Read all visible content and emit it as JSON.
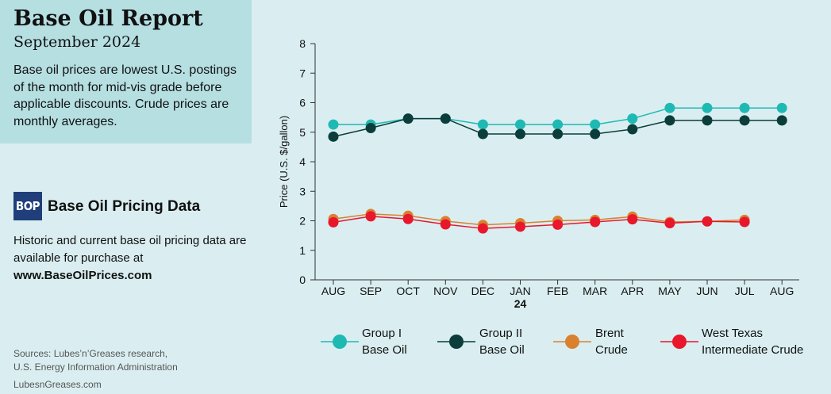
{
  "header": {
    "title": "Base Oil Report",
    "subtitle": "September 2024",
    "description": "Base oil prices are lowest U.S. postings of the month for mid-vis grade before applicable discounts. Crude prices are monthly averages."
  },
  "promo": {
    "logo_text": "BOP",
    "heading": "Base Oil Pricing Data",
    "text": "Historic and current base oil pricing data are available for purchase at",
    "url": "www.BaseOilPrices.com"
  },
  "footer": {
    "sources_line1": "Sources: Lubes’n’Greases research,",
    "sources_line2": "U.S. Energy Information Administration",
    "site": "LubesnGreases.com"
  },
  "legend": [
    {
      "line1": "Group I",
      "line2": "Base Oil"
    },
    {
      "line1": "Group II",
      "line2": "Base Oil"
    },
    {
      "line1": "Brent",
      "line2": "Crude"
    },
    {
      "line1": "West Texas",
      "line2": "Intermediate Crude"
    }
  ],
  "chart_data": {
    "type": "line",
    "categories": [
      "AUG",
      "SEP",
      "OCT",
      "NOV",
      "DEC",
      "JAN",
      "FEB",
      "MAR",
      "APR",
      "MAY",
      "JUN",
      "JUL",
      "AUG"
    ],
    "year_label": "24",
    "ylabel": "Price (U.S. $/gallon)",
    "ylim": [
      0,
      8
    ],
    "yticks": [
      0,
      1,
      2,
      3,
      4,
      5,
      6,
      7,
      8
    ],
    "grid": false,
    "legend_position": "bottom",
    "series": [
      {
        "name": "Group I Base Oil",
        "color": "#1fb9b4",
        "values": [
          5.26,
          5.26,
          5.46,
          5.46,
          5.26,
          5.26,
          5.26,
          5.26,
          5.46,
          5.82,
          5.82,
          5.82,
          5.82
        ]
      },
      {
        "name": "Group II Base Oil",
        "color": "#0b3d3a",
        "values": [
          4.85,
          5.14,
          5.46,
          5.46,
          4.94,
          4.94,
          4.94,
          4.94,
          5.1,
          5.4,
          5.4,
          5.4,
          5.4
        ]
      },
      {
        "name": "Brent Crude",
        "color": "#d9812f",
        "values": [
          2.06,
          2.23,
          2.17,
          1.99,
          1.86,
          1.92,
          2.0,
          2.03,
          2.14,
          1.96,
          1.98,
          2.03,
          null
        ]
      },
      {
        "name": "West Texas Intermediate Crude",
        "color": "#e8172b",
        "values": [
          1.95,
          2.15,
          2.06,
          1.88,
          1.74,
          1.8,
          1.87,
          1.96,
          2.05,
          1.92,
          1.98,
          1.96,
          null
        ]
      }
    ]
  }
}
